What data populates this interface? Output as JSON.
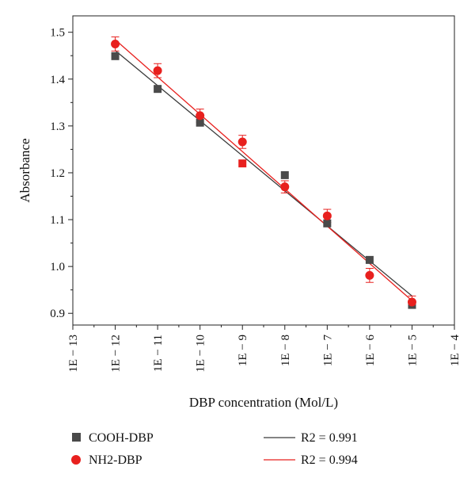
{
  "chart_data": {
    "type": "scatter",
    "xlabel": "DBP concentration (Mol/L)",
    "ylabel": "Absorbance",
    "x_ticks": [
      -13,
      -12,
      -11,
      -10,
      -9,
      -8,
      -7,
      -6,
      -5,
      -4
    ],
    "x_tick_labels": [
      "1E − 13",
      "1E − 12",
      "1E − 11",
      "1E − 10",
      "1E − 9",
      "1E − 8",
      "1E − 7",
      "1E − 6",
      "1E − 5",
      "1E − 4"
    ],
    "xlim": [
      -13,
      -4
    ],
    "y_ticks": [
      0.9,
      1.0,
      1.1,
      1.2,
      1.3,
      1.4,
      1.5
    ],
    "y_tick_labels": [
      "0.9",
      "1.0",
      "1.1",
      "1.2",
      "1.3",
      "1.4",
      "1.5"
    ],
    "ylim": [
      0.875,
      1.535
    ],
    "grid": false,
    "legend_position": "bottom",
    "series": [
      {
        "name": "COOH-DBP",
        "marker": "square",
        "color": "#4a4a4a",
        "x": [
          -12,
          -11,
          -10,
          -9,
          -8,
          -7,
          -6,
          -5
        ],
        "y": [
          1.449,
          1.379,
          1.307,
          1.22,
          1.195,
          1.092,
          1.014,
          0.918
        ],
        "point_colors": [
          "#4a4a4a",
          "#4a4a4a",
          "#4a4a4a",
          "#e8201e",
          "#4a4a4a",
          "#4a4a4a",
          "#4a4a4a",
          "#4a4a4a"
        ]
      },
      {
        "name": "NH2-DBP",
        "marker": "circle",
        "color": "#e8201e",
        "x": [
          -12,
          -11,
          -10,
          -9,
          -8,
          -7,
          -6,
          -5
        ],
        "y": [
          1.475,
          1.418,
          1.322,
          1.266,
          1.17,
          1.108,
          0.981,
          0.924
        ],
        "error": [
          0.015,
          0.015,
          0.014,
          0.014,
          0.013,
          0.014,
          0.015,
          0.013
        ]
      }
    ],
    "fit_lines": [
      {
        "name": "R2 = 0.991",
        "color": "#3a3a3a",
        "x": [
          -12,
          -5
        ],
        "y": [
          1.461,
          0.937
        ]
      },
      {
        "name": "R2 = 0.994",
        "color": "#e8201e",
        "x": [
          -12,
          -5
        ],
        "y": [
          1.484,
          0.927
        ]
      }
    ]
  }
}
